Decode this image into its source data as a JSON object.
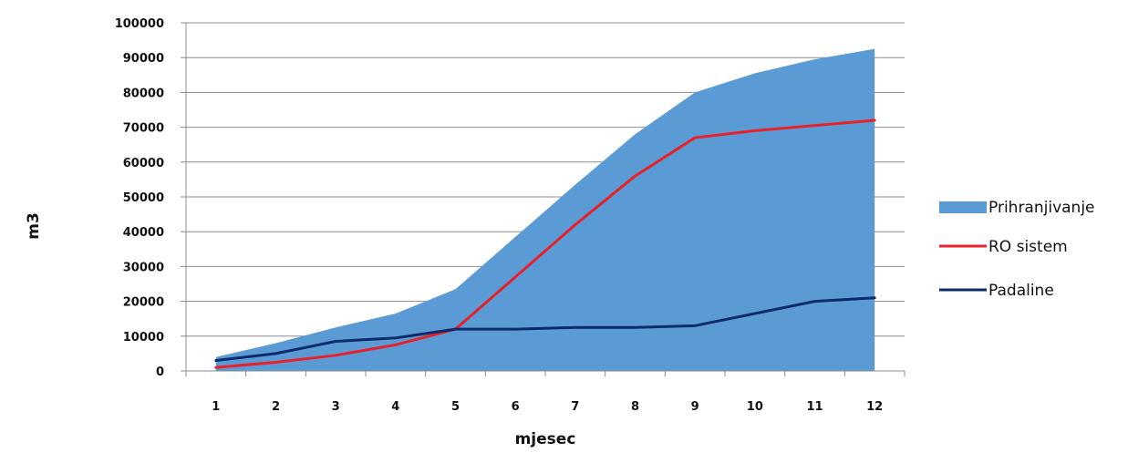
{
  "chart_data": {
    "type": "area",
    "xlabel": "mjesec",
    "ylabel": "m3",
    "categories": [
      "1",
      "2",
      "3",
      "4",
      "5",
      "6",
      "7",
      "8",
      "9",
      "10",
      "11",
      "12"
    ],
    "ylim": [
      0,
      100000
    ],
    "yticks": [
      "0",
      "10000",
      "20000",
      "30000",
      "40000",
      "50000",
      "60000",
      "70000",
      "80000",
      "90000",
      "100000"
    ],
    "grid": true,
    "legend_position": "right",
    "series": [
      {
        "name": "Prihranjivanje",
        "kind": "area",
        "color": "#5B9BD5",
        "values": [
          4000,
          8000,
          12500,
          16500,
          23500,
          38500,
          53500,
          68000,
          80000,
          85500,
          89500,
          92500
        ]
      },
      {
        "name": "RO sistem",
        "kind": "line",
        "color": "#E8202A",
        "values": [
          1000,
          2500,
          4500,
          7500,
          12000,
          27000,
          42000,
          56000,
          67000,
          69000,
          70500,
          72000
        ]
      },
      {
        "name": "Padaline",
        "kind": "line",
        "color": "#0D2B6B",
        "values": [
          3000,
          5000,
          8500,
          9500,
          12000,
          12000,
          12500,
          12500,
          13000,
          16500,
          20000,
          21000
        ]
      }
    ]
  }
}
